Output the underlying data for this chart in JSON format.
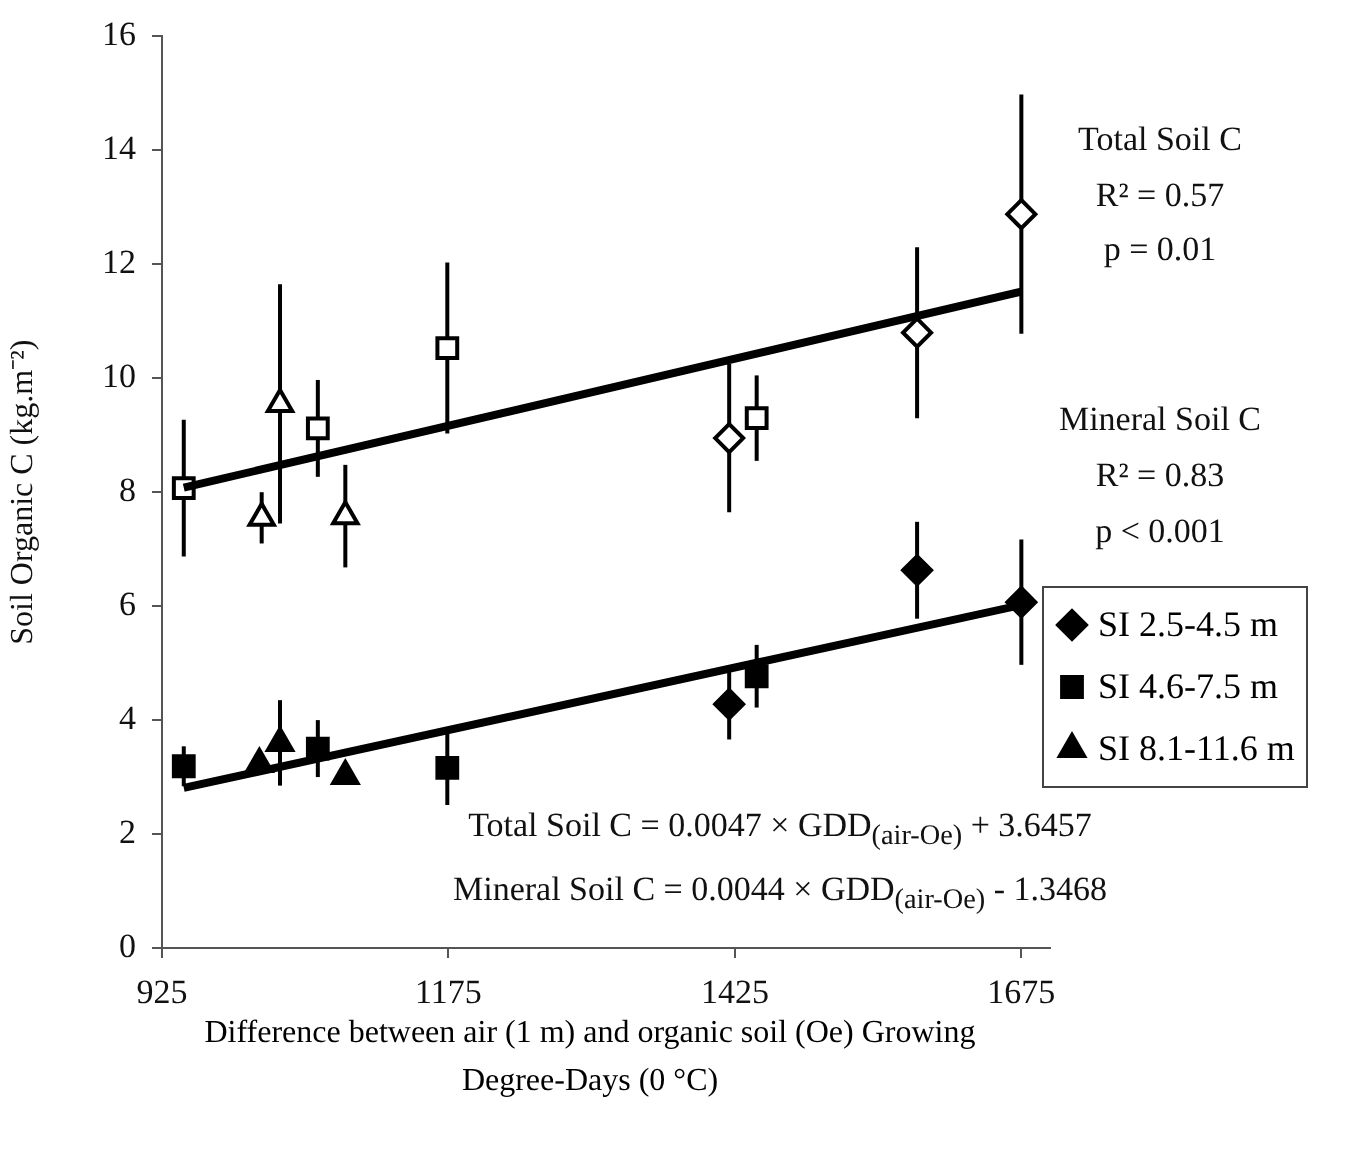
{
  "chart_data": {
    "type": "scatter",
    "xlabel": "Difference between air (1 m) and organic soil (Oe) Growing Degree-Days (0 °C)",
    "ylabel": "Soil Organic C (kg.m⁻²)",
    "xlim": [
      925,
      1700
    ],
    "xticks": [
      925,
      1175,
      1425,
      1675
    ],
    "ylim": [
      0,
      16
    ],
    "yticks": [
      0,
      2,
      4,
      6,
      8,
      10,
      12,
      14,
      16
    ],
    "grid": false,
    "legend": "right",
    "annotations": [
      "Total Soil C",
      "R² = 0.57",
      "p = 0.01",
      "Mineral Soil C",
      "R² = 0.83",
      "p < 0.001",
      "Total Soil C = 0.0047 × GDD$_{(air-Oe)}$ + 3.6457",
      "Mineral Soil C = 0.0044 × GDD$_{(air-Oe)}$ - 1.3468"
    ],
    "series": [
      {
        "type": "line",
        "color": "#000000",
        "marker": "none",
        "x": [
          944,
          1675
        ],
        "values": [
          8.08,
          11.52
        ]
      },
      {
        "type": "line",
        "color": "#000000",
        "marker": "none",
        "x": [
          944,
          1675
        ],
        "values": [
          2.81,
          6.02
        ]
      },
      {
        "color": "#000000",
        "marker": "diamond",
        "x": [
          1420,
          1584,
          1675
        ],
        "values": [
          8.95,
          10.8,
          12.88
        ],
        "errors": [
          1.3,
          1.5,
          2.1
        ]
      },
      {
        "color": "#000000",
        "marker": "square",
        "x": [
          944,
          1061,
          1174,
          1444
        ],
        "values": [
          8.07,
          9.12,
          10.53,
          9.3
        ],
        "errors": [
          1.2,
          0.85,
          1.5,
          0.75
        ]
      },
      {
        "color": "#000000",
        "marker": "triangle",
        "x": [
          1012,
          1028,
          1085
        ],
        "values": [
          7.55,
          9.55,
          7.58
        ],
        "errors": [
          0.45,
          2.1,
          0.9
        ]
      },
      {
        "name": "SI 2.5-4.5 m",
        "color": "#000000",
        "marker": "diamond",
        "x": [
          1420,
          1584,
          1675
        ],
        "values": [
          4.28,
          6.63,
          6.07
        ],
        "errors": [
          0.62,
          0.85,
          1.1
        ]
      },
      {
        "name": "SI 4.6-7.5 m",
        "color": "#000000",
        "marker": "square",
        "x": [
          944,
          1061,
          1174,
          1444
        ],
        "values": [
          3.19,
          3.5,
          3.16,
          4.77
        ],
        "errors": [
          0.35,
          0.5,
          0.65,
          0.55
        ]
      },
      {
        "name": "SI 8.1-11.6 m",
        "color": "#000000",
        "marker": "triangle",
        "x": [
          1010,
          1028,
          1085
        ],
        "values": [
          3.23,
          3.6,
          3.02
        ],
        "errors": [
          null,
          0.75,
          null
        ]
      }
    ]
  }
}
